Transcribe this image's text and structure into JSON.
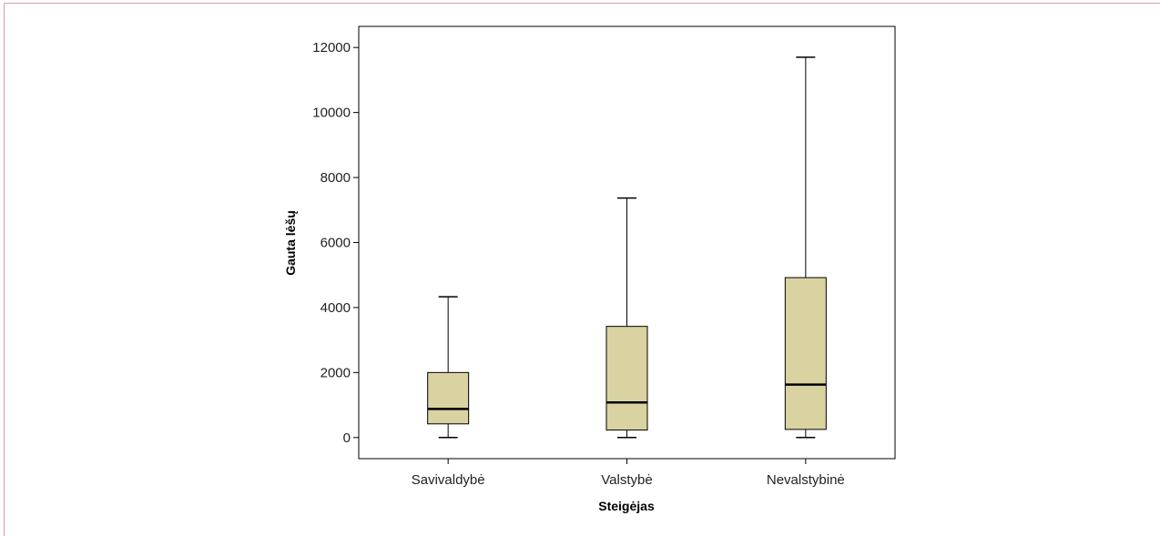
{
  "chart_data": {
    "type": "boxplot",
    "xlabel": "Steigėjas",
    "ylabel": "Gauta lėšų",
    "ylim": [
      -650,
      12650
    ],
    "yticks": [
      0,
      2000,
      4000,
      6000,
      8000,
      10000,
      12000
    ],
    "categories": [
      "Savivaldybė",
      "Valstybė",
      "Nevalstybinė"
    ],
    "boxes": [
      {
        "category": "Savivaldybė",
        "min": 0,
        "q1": 420,
        "median": 880,
        "q3": 2000,
        "max": 4330
      },
      {
        "category": "Valstybė",
        "min": 0,
        "q1": 230,
        "median": 1080,
        "q3": 3420,
        "max": 7370
      },
      {
        "category": "Nevalstybinė",
        "min": 0,
        "q1": 250,
        "median": 1630,
        "q3": 4920,
        "max": 11700
      }
    ],
    "box_color": "#d8d3a1",
    "line_color": "#000000",
    "grid": false,
    "legend": "none"
  }
}
